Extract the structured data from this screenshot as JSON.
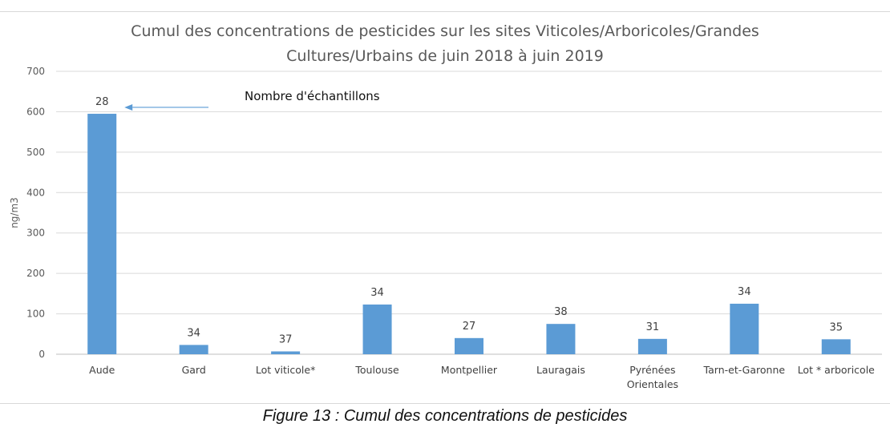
{
  "chart_data": {
    "type": "bar",
    "title_lines": [
      "Cumul des concentrations de pesticides sur les sites Viticoles/Arboricoles/Grandes",
      "Cultures/Urbains de juin 2018 à juin 2019"
    ],
    "ylabel": "ng/m3",
    "xlabel": "",
    "ylim": [
      0,
      700
    ],
    "yticks": [
      0,
      100,
      200,
      300,
      400,
      500,
      600,
      700
    ],
    "grid": true,
    "categories": [
      [
        "Aude"
      ],
      [
        "Gard"
      ],
      [
        "Lot viticole*"
      ],
      [
        "Toulouse"
      ],
      [
        "Montpellier"
      ],
      [
        "Lauragais"
      ],
      [
        "Pyrénées",
        "Orientales"
      ],
      [
        "Tarn-et-Garonne"
      ],
      [
        "Lot * arboricole"
      ]
    ],
    "values": [
      595,
      23,
      7,
      123,
      40,
      75,
      38,
      125,
      37
    ],
    "bar_labels": [
      "28",
      "34",
      "37",
      "34",
      "27",
      "38",
      "31",
      "34",
      "35"
    ],
    "bar_color": "#5b9bd5",
    "annotation": {
      "text": "Nombre d'échantillons",
      "arrow_points_to_category": 0
    }
  },
  "caption": "Figure 13 : Cumul des concentrations de pesticides"
}
